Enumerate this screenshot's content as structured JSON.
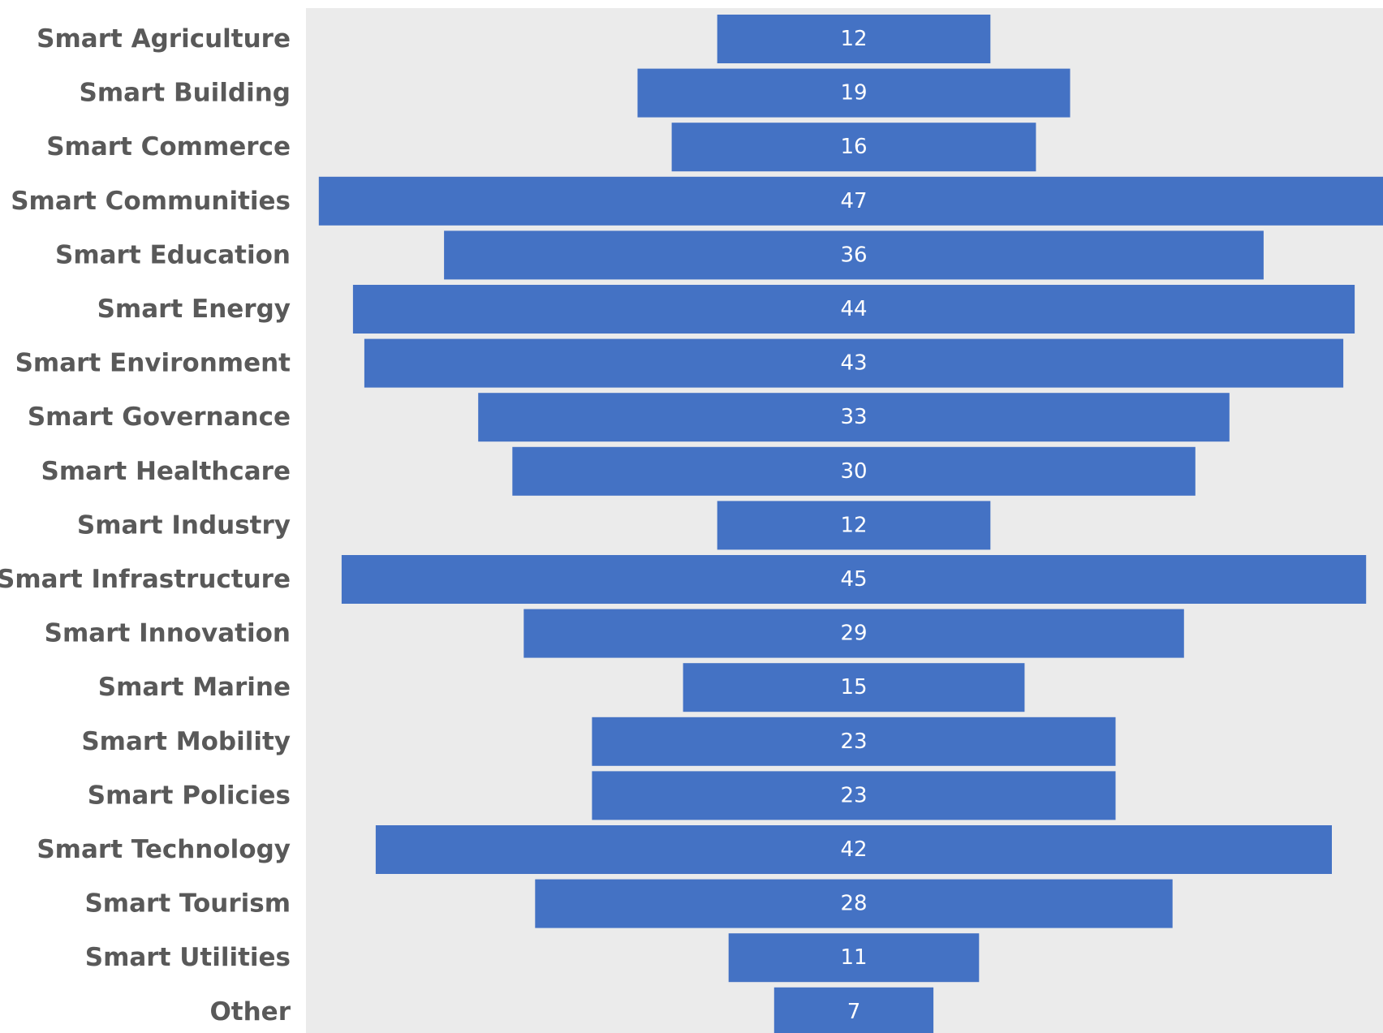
{
  "chart_data": {
    "type": "bar",
    "orientation": "horizontal-centered",
    "categories": [
      "Smart Agriculture",
      "Smart Building",
      "Smart Commerce",
      "Smart Communities",
      "Smart Education",
      "Smart Energy",
      "Smart Environment",
      "Smart Governance",
      "Smart Healthcare",
      "Smart Industry",
      "Smart Infrastructure",
      "Smart Innovation",
      "Smart Marine",
      "Smart Mobility",
      "Smart Policies",
      "Smart Technology",
      "Smart Tourism",
      "Smart Utilities",
      "Other"
    ],
    "values": [
      12,
      19,
      16,
      47,
      36,
      44,
      43,
      33,
      30,
      12,
      45,
      29,
      15,
      23,
      23,
      42,
      28,
      11,
      7
    ],
    "title": "",
    "xlabel": "",
    "ylabel": "",
    "xlim": [
      0,
      47
    ],
    "data_labels": true,
    "grid": false,
    "colors": {
      "bar": "#4472C4",
      "plot_background": "#EBEBEB",
      "category_text": "#595959",
      "value_text": "#FFFFFF"
    }
  }
}
